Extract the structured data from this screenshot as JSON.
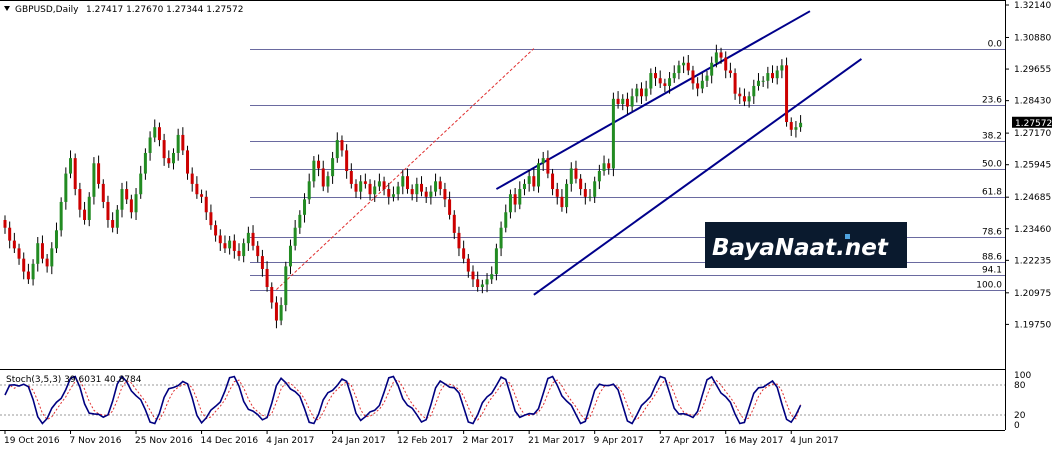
{
  "header": {
    "symbol": "GBPUSD,Daily",
    "ohlc": "1.27417 1.27670 1.27344 1.27572"
  },
  "stoch_label": "Stoch(3,5,3) 39.6031 40.8784",
  "watermark": "BayaNaat.net",
  "colors": {
    "bull": "#228B22",
    "bear": "#CC0000",
    "channel": "#00008B",
    "fib": "#6A6AA0",
    "dashed": "#E03030",
    "stoch_main": "#000080",
    "stoch_signal": "#E03030",
    "watermark_bg": "#0A1A2E"
  },
  "chart_data": {
    "type": "candlestick",
    "symbol": "GBPUSD",
    "timeframe": "Daily",
    "last_price": 1.27572,
    "last_price_label": "1.27572",
    "y_ticks": [
      "1.32140",
      "1.30880",
      "1.29655",
      "1.28430",
      "1.27170",
      "1.25945",
      "1.24685",
      "1.23460",
      "1.22235",
      "1.20975",
      "1.19750"
    ],
    "ylim": [
      1.193,
      1.3214
    ],
    "x_ticks": [
      {
        "label": "19 Oct 2016",
        "i": 0
      },
      {
        "label": "7 Nov 2016",
        "i": 14
      },
      {
        "label": "25 Nov 2016",
        "i": 28
      },
      {
        "label": "14 Dec 2016",
        "i": 42
      },
      {
        "label": "4 Jan 2017",
        "i": 56
      },
      {
        "label": "24 Jan 2017",
        "i": 70
      },
      {
        "label": "12 Feb 2017",
        "i": 84
      },
      {
        "label": "2 Mar 2017",
        "i": 98
      },
      {
        "label": "21 Mar 2017",
        "i": 112
      },
      {
        "label": "9 Apr 2017",
        "i": 126
      },
      {
        "label": "27 Apr 2017",
        "i": 140
      },
      {
        "label": "16 May 2017",
        "i": 154
      },
      {
        "label": "4 Jun 2017",
        "i": 168
      }
    ],
    "closes": [
      1.235,
      1.23,
      1.227,
      1.223,
      1.218,
      1.215,
      1.221,
      1.229,
      1.223,
      1.22,
      1.227,
      1.234,
      1.245,
      1.256,
      1.262,
      1.25,
      1.242,
      1.238,
      1.247,
      1.26,
      1.252,
      1.245,
      1.238,
      1.235,
      1.242,
      1.25,
      1.246,
      1.241,
      1.248,
      1.256,
      1.264,
      1.27,
      1.274,
      1.269,
      1.262,
      1.26,
      1.264,
      1.271,
      1.265,
      1.256,
      1.252,
      1.248,
      1.247,
      1.241,
      1.236,
      1.232,
      1.229,
      1.227,
      1.23,
      1.226,
      1.224,
      1.229,
      1.233,
      1.228,
      1.224,
      1.219,
      1.212,
      1.206,
      1.199,
      1.205,
      1.22,
      1.228,
      1.235,
      1.24,
      1.246,
      1.253,
      1.261,
      1.258,
      1.251,
      1.255,
      1.262,
      1.269,
      1.265,
      1.257,
      1.252,
      1.249,
      1.253,
      1.252,
      1.248,
      1.251,
      1.253,
      1.25,
      1.247,
      1.248,
      1.251,
      1.255,
      1.25,
      1.248,
      1.252,
      1.249,
      1.247,
      1.249,
      1.253,
      1.25,
      1.246,
      1.24,
      1.233,
      1.227,
      1.223,
      1.218,
      1.215,
      1.212,
      1.213,
      1.215,
      1.217,
      1.227,
      1.235,
      1.241,
      1.248,
      1.244,
      1.25,
      1.252,
      1.255,
      1.251,
      1.26,
      1.262,
      1.256,
      1.25,
      1.247,
      1.243,
      1.252,
      1.258,
      1.254,
      1.25,
      1.247,
      1.247,
      1.253,
      1.257,
      1.26,
      1.258,
      1.285,
      1.283,
      1.285,
      1.282,
      1.286,
      1.289,
      1.286,
      1.289,
      1.295,
      1.293,
      1.291,
      1.29,
      1.293,
      1.295,
      1.298,
      1.299,
      1.296,
      1.291,
      1.289,
      1.292,
      1.294,
      1.299,
      1.303,
      1.301,
      1.296,
      1.295,
      1.287,
      1.286,
      1.284,
      1.286,
      1.29,
      1.292,
      1.292,
      1.295,
      1.293,
      1.296,
      1.298,
      1.276,
      1.273,
      1.274,
      1.2757
    ],
    "fib_levels": [
      {
        "label": "0.0",
        "price": 1.3045
      },
      {
        "label": "23.6",
        "price": 1.2825
      },
      {
        "label": "38.2",
        "price": 1.2685
      },
      {
        "label": "50.0",
        "price": 1.2578
      },
      {
        "label": "61.8",
        "price": 1.2468
      },
      {
        "label": "78.6",
        "price": 1.2315
      },
      {
        "label": "88.6",
        "price": 1.2218
      },
      {
        "label": "94.1",
        "price": 1.2168
      },
      {
        "label": "100.0",
        "price": 1.211
      }
    ],
    "channel_upper": [
      {
        "i": 105,
        "price": 1.25
      },
      {
        "i": 172,
        "price": 1.319
      }
    ],
    "channel_lower": [
      {
        "i": 113,
        "price": 1.209
      },
      {
        "i": 183,
        "price": 1.3005
      }
    ],
    "trend_dashed": [
      {
        "i": 58,
        "price": 1.211
      },
      {
        "i": 113,
        "price": 1.3045
      }
    ],
    "stoch": {
      "panel_ticks": [
        "100",
        "80",
        "20",
        "0"
      ],
      "range": [
        0,
        100
      ],
      "last_main": 39.6031,
      "last_signal": 40.8784
    }
  }
}
